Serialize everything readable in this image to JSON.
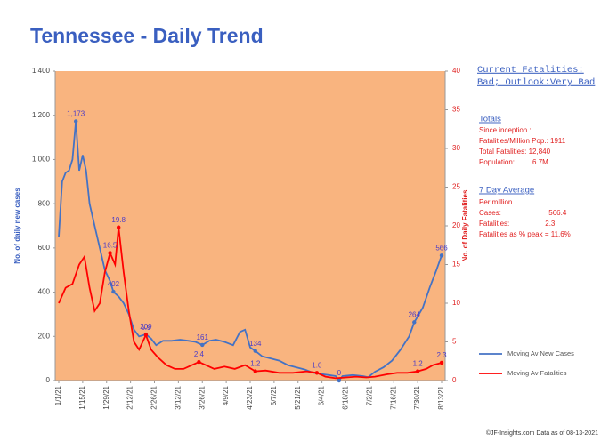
{
  "chart_data": {
    "type": "line",
    "title": "Tennessee - Daily Trend",
    "y_label": "No. of daily new  cases",
    "y2_label": "No. of Daily Fatalities",
    "xlim": [
      "1/1/21",
      "8/13/21"
    ],
    "xticks": [
      "1/1/21",
      "1/15/21",
      "1/29/21",
      "2/12/21",
      "2/26/21",
      "3/12/21",
      "3/26/21",
      "4/9/21",
      "4/23/21",
      "5/7/21",
      "5/21/21",
      "6/4/21",
      "6/18/21",
      "7/2/21",
      "7/16/21",
      "7/30/21",
      "8/13/21"
    ],
    "ylim": [
      0,
      1400
    ],
    "yticks": [
      0,
      200,
      400,
      600,
      800,
      {
        "value": 1000,
        "label": "1,000"
      },
      {
        "value": 1200,
        "label": "1,200"
      },
      {
        "value": 1400,
        "label": "1,400"
      }
    ],
    "y2lim": [
      0,
      40
    ],
    "y2ticks": [
      0,
      5,
      10,
      15,
      20,
      25,
      30,
      35,
      40
    ],
    "series": [
      {
        "name": "Moving Av New Cases",
        "color": "#4472c4",
        "x": [
          "1/1/21",
          "1/3/21",
          "1/5/21",
          "1/7/21",
          "1/9/21",
          "1/11/21",
          "1/13/21",
          "1/15/21",
          "1/17/21",
          "1/19/21",
          "1/22/21",
          "1/25/21",
          "1/28/21",
          "1/31/21",
          "2/2/21",
          "2/5/21",
          "2/8/21",
          "2/11/21",
          "2/14/21",
          "2/17/21",
          "2/21/21",
          "2/24/21",
          "2/27/21",
          "3/3/21",
          "3/8/21",
          "3/13/21",
          "3/18/21",
          "3/22/21",
          "3/26/21",
          "3/30/21",
          "4/3/21",
          "4/8/21",
          "4/13/21",
          "4/17/21",
          "4/20/21",
          "4/23/21",
          "4/26/21",
          "4/30/21",
          "5/5/21",
          "5/10/21",
          "5/15/21",
          "5/20/21",
          "5/25/21",
          "5/30/21",
          "6/3/21",
          "6/8/21",
          "6/12/21",
          "6/14/21",
          "6/16/21",
          "6/22/21",
          "6/28/21",
          "7/1/21",
          "7/5/21",
          "7/10/21",
          "7/15/21",
          "7/20/21",
          "7/25/21",
          "7/28/21",
          "8/2/21",
          "8/6/21",
          "8/10/21",
          "8/13/21"
        ],
        "values": [
          650,
          900,
          940,
          950,
          1000,
          1173,
          950,
          1020,
          950,
          800,
          700,
          600,
          500,
          450,
          402,
          380,
          350,
          300,
          230,
          200,
          209,
          190,
          160,
          180,
          180,
          185,
          180,
          175,
          161,
          180,
          185,
          175,
          160,
          220,
          230,
          150,
          134,
          110,
          100,
          90,
          70,
          60,
          50,
          35,
          30,
          25,
          20,
          0,
          20,
          25,
          20,
          15,
          40,
          60,
          90,
          140,
          200,
          264,
          330,
          420,
          500,
          566
        ],
        "value_labels": [
          null,
          null,
          null,
          null,
          null,
          "1,173",
          null,
          null,
          null,
          null,
          null,
          null,
          null,
          null,
          "402",
          null,
          null,
          null,
          null,
          null,
          "209",
          null,
          null,
          null,
          null,
          null,
          null,
          null,
          "161",
          null,
          null,
          null,
          null,
          null,
          null,
          null,
          "134",
          null,
          null,
          null,
          null,
          null,
          null,
          null,
          null,
          null,
          null,
          "0",
          null,
          null,
          null,
          null,
          null,
          null,
          null,
          null,
          null,
          "264",
          null,
          null,
          null,
          "566"
        ]
      },
      {
        "name": "Moving Av Fatalities",
        "color": "#ff0000",
        "axis": "y2",
        "x": [
          "1/1/21",
          "1/5/21",
          "1/9/21",
          "1/13/21",
          "1/16/21",
          "1/19/21",
          "1/22/21",
          "1/25/21",
          "1/28/21",
          "1/31/21",
          "2/3/21",
          "2/5/21",
          "2/8/21",
          "2/11/21",
          "2/14/21",
          "2/17/21",
          "2/21/21",
          "2/24/21",
          "2/28/21",
          "3/5/21",
          "3/10/21",
          "3/15/21",
          "3/20/21",
          "3/24/21",
          "3/28/21",
          "4/2/21",
          "4/8/21",
          "4/14/21",
          "4/20/21",
          "4/26/21",
          "5/2/21",
          "5/10/21",
          "5/18/21",
          "5/26/21",
          "6/1/21",
          "6/6/21",
          "6/12/21",
          "6/18/21",
          "6/24/21",
          "6/30/21",
          "7/5/21",
          "7/12/21",
          "7/18/21",
          "7/24/21",
          "7/30/21",
          "8/4/21",
          "8/8/21",
          "8/13/21"
        ],
        "values": [
          10,
          12,
          12.5,
          15,
          16,
          12,
          9,
          10,
          14,
          16.5,
          15,
          19.8,
          14,
          9,
          5,
          4,
          5.9,
          4,
          3,
          2,
          1.5,
          1.5,
          2,
          2.4,
          2,
          1.5,
          1.8,
          1.5,
          2,
          1.2,
          1.3,
          1,
          1,
          1.2,
          1.0,
          0.5,
          0.3,
          0.4,
          0.5,
          0.4,
          0.5,
          0.8,
          1,
          1,
          1.2,
          1.5,
          2,
          2.3
        ],
        "value_labels": [
          null,
          null,
          null,
          null,
          null,
          null,
          null,
          null,
          null,
          "16.5",
          null,
          "19.8",
          null,
          null,
          null,
          null,
          "5.9",
          null,
          null,
          null,
          null,
          null,
          null,
          "2.4",
          null,
          null,
          null,
          null,
          null,
          "1.2",
          null,
          null,
          null,
          null,
          "1.0",
          null,
          null,
          null,
          null,
          null,
          null,
          null,
          null,
          null,
          "1.2",
          null,
          null,
          "2.3"
        ]
      }
    ],
    "legend": "right",
    "panel": {
      "headline": [
        "Current Fatalities:",
        "Bad; Outlook:Very Bad"
      ],
      "totals_title": "Totals",
      "totals_lines": [
        "Since inception :",
        "Fatalities/Million Pop.: 1911",
        "Total Fatalities: 12,840",
        "Population:         6.7M"
      ],
      "average_title": "7 Day Average",
      "average_lines": [
        "Per million",
        "Cases:                        566.4",
        "Fatalities:                  2.3",
        "Fatalities as % peak = 11.6%"
      ]
    },
    "footer": "©JF-Insights.com  Data as of 08-13-2021"
  }
}
